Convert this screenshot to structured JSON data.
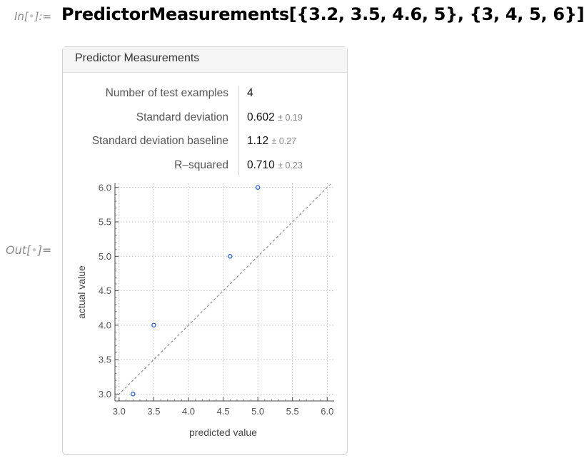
{
  "input": {
    "label_prefix": "In[",
    "label_dot": "•",
    "label_suffix": "]:=",
    "code": "PredictorMeasurements[{3.2, 3.5, 4.6, 5}, {3, 4, 5, 6}]"
  },
  "output": {
    "label_prefix": "Out[",
    "label_dot": "•",
    "label_suffix": "]="
  },
  "panel": {
    "title": "Predictor Measurements",
    "metrics": [
      {
        "label": "Number of test examples",
        "value": "4",
        "error": ""
      },
      {
        "label": "Standard deviation",
        "value": "0.602",
        "error": "± 0.19"
      },
      {
        "label": "Standard deviation baseline",
        "value": "1.12",
        "error": "± 0.27"
      },
      {
        "label": "R–squared",
        "value": "0.710",
        "error": "± 0.23"
      }
    ]
  },
  "chart_data": {
    "type": "scatter",
    "title": "",
    "xlabel": "predicted value",
    "ylabel": "actual value",
    "xlim": [
      2.94,
      6.1
    ],
    "ylim": [
      2.9,
      6.06
    ],
    "xticks": [
      3.0,
      3.5,
      4.0,
      4.5,
      5.0,
      5.5,
      6.0
    ],
    "yticks": [
      3.0,
      3.5,
      4.0,
      4.5,
      5.0,
      5.5,
      6.0
    ],
    "x": [
      3.2,
      3.5,
      4.6,
      5.0
    ],
    "y": [
      3,
      4,
      5,
      6
    ],
    "reference_line": "y = x (dashed)",
    "grid": true,
    "point_color": "#3a6bc8",
    "grid_color": "#bdbdbd",
    "reference_color": "#8a8a8a"
  }
}
